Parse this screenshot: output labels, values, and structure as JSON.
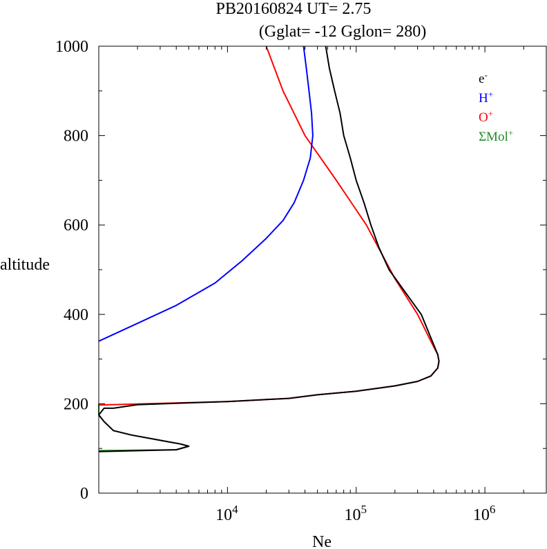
{
  "chart_data": {
    "type": "line",
    "title_line1": "PB20160824   UT=  2.75",
    "title_line2": "(Gglat= -12   Gglon=  280)",
    "xlabel": "Ne",
    "ylabel": "altitude",
    "x_scale": "log",
    "xlim": [
      1000,
      3000000
    ],
    "ylim": [
      0,
      1000
    ],
    "y_ticks": [
      {
        "value": 0,
        "label": "0"
      },
      {
        "value": 200,
        "label": "200"
      },
      {
        "value": 400,
        "label": "400"
      },
      {
        "value": 600,
        "label": "600"
      },
      {
        "value": 800,
        "label": "800"
      },
      {
        "value": 1000,
        "label": "1000"
      }
    ],
    "x_ticks": [
      {
        "value": 10000,
        "base": "10",
        "exp": "4"
      },
      {
        "value": 100000,
        "base": "10",
        "exp": "5"
      },
      {
        "value": 1000000,
        "base": "10",
        "exp": "6"
      }
    ],
    "legend_position": "top-right",
    "series": [
      {
        "id": "sum-mol",
        "name": "ΣMol⁺",
        "legend_main": "ΣMol",
        "legend_sup": "+",
        "color": "#228b22",
        "points": [
          [
            1000,
            95
          ],
          [
            4000,
            97
          ],
          [
            5000,
            105
          ],
          [
            4300,
            110
          ],
          [
            1800,
            130
          ],
          [
            1300,
            140
          ],
          [
            1100,
            160
          ],
          [
            1000,
            175
          ],
          [
            1000,
            190
          ],
          [
            1000,
            200
          ]
        ]
      },
      {
        "id": "o-plus",
        "name": "O⁺",
        "legend_main": "O",
        "legend_sup": "+",
        "color": "#ff0000",
        "points": [
          [
            1000,
            197
          ],
          [
            10000,
            205
          ],
          [
            30000,
            212
          ],
          [
            50000,
            220
          ],
          [
            100000,
            228
          ],
          [
            200000,
            240
          ],
          [
            300000,
            250
          ],
          [
            380000,
            262
          ],
          [
            430000,
            280
          ],
          [
            440000,
            295
          ],
          [
            430000,
            310
          ],
          [
            380000,
            340
          ],
          [
            300000,
            400
          ],
          [
            200000,
            480
          ],
          [
            120000,
            600
          ],
          [
            70000,
            700
          ],
          [
            40000,
            800
          ],
          [
            27000,
            900
          ],
          [
            20000,
            1000
          ]
        ]
      },
      {
        "id": "h-plus",
        "name": "H⁺",
        "legend_main": "H",
        "legend_sup": "+",
        "color": "#0000ff",
        "points": [
          [
            1000,
            340
          ],
          [
            2000,
            380
          ],
          [
            4000,
            420
          ],
          [
            8000,
            470
          ],
          [
            13000,
            520
          ],
          [
            20000,
            570
          ],
          [
            27000,
            610
          ],
          [
            33000,
            650
          ],
          [
            39000,
            700
          ],
          [
            44000,
            750
          ],
          [
            46000,
            800
          ],
          [
            45000,
            850
          ],
          [
            43000,
            900
          ],
          [
            41000,
            950
          ],
          [
            39000,
            1000
          ]
        ]
      },
      {
        "id": "e-minus",
        "name": "e⁻",
        "legend_main": "e",
        "legend_sup": "-",
        "color": "#000000",
        "points": [
          [
            1000,
            93
          ],
          [
            4000,
            97
          ],
          [
            5000,
            105
          ],
          [
            4300,
            110
          ],
          [
            1800,
            130
          ],
          [
            1300,
            140
          ],
          [
            1100,
            160
          ],
          [
            1000,
            175
          ],
          [
            1100,
            190
          ],
          [
            1300,
            190
          ],
          [
            2000,
            198
          ],
          [
            10000,
            205
          ],
          [
            30000,
            212
          ],
          [
            50000,
            220
          ],
          [
            100000,
            228
          ],
          [
            200000,
            240
          ],
          [
            300000,
            250
          ],
          [
            380000,
            262
          ],
          [
            430000,
            280
          ],
          [
            440000,
            295
          ],
          [
            430000,
            310
          ],
          [
            390000,
            340
          ],
          [
            320000,
            400
          ],
          [
            240000,
            450
          ],
          [
            180000,
            500
          ],
          [
            150000,
            550
          ],
          [
            130000,
            600
          ],
          [
            115000,
            650
          ],
          [
            100000,
            700
          ],
          [
            90000,
            750
          ],
          [
            80000,
            800
          ],
          [
            75000,
            850
          ],
          [
            68000,
            900
          ],
          [
            62000,
            950
          ],
          [
            58000,
            1000
          ]
        ]
      }
    ]
  }
}
